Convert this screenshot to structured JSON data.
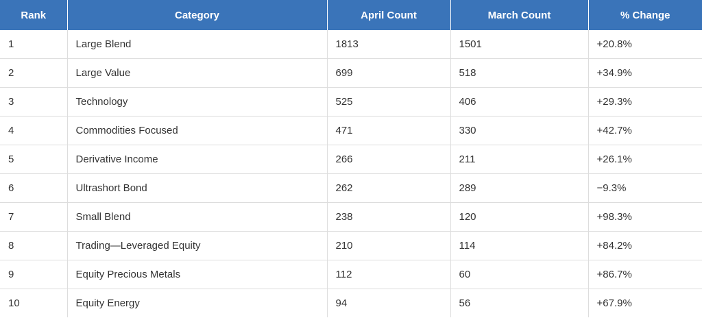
{
  "chart_data": {
    "type": "table",
    "columns": [
      "Rank",
      "Category",
      "April Count",
      "March Count",
      "% Change"
    ],
    "rows": [
      [
        "1",
        "Large Blend",
        "1813",
        "1501",
        "+20.8%"
      ],
      [
        "2",
        "Large Value",
        "699",
        "518",
        "+34.9%"
      ],
      [
        "3",
        "Technology",
        "525",
        "406",
        "+29.3%"
      ],
      [
        "4",
        "Commodities Focused",
        "471",
        "330",
        "+42.7%"
      ],
      [
        "5",
        "Derivative Income",
        "266",
        "211",
        "+26.1%"
      ],
      [
        "6",
        "Ultrashort Bond",
        "262",
        "289",
        "−9.3%"
      ],
      [
        "7",
        "Small Blend",
        "238",
        "120",
        "+98.3%"
      ],
      [
        "8",
        "Trading—Leveraged Equity",
        "210",
        "114",
        "+84.2%"
      ],
      [
        "9",
        "Equity Precious Metals",
        "112",
        "60",
        "+86.7%"
      ],
      [
        "10",
        "Equity Energy",
        "94",
        "56",
        "+67.9%"
      ]
    ],
    "header_color": "#3a74b9"
  }
}
